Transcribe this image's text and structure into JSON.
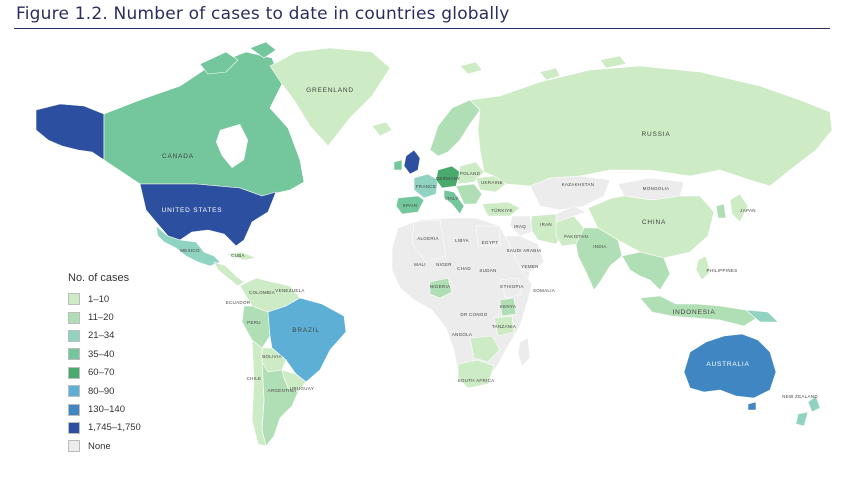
{
  "title": "Figure 1.2. Number of cases to date in countries globally",
  "legend": {
    "title": "No. of cases",
    "items": [
      {
        "label": "1–10",
        "color": "#cdebc5"
      },
      {
        "label": "11–20",
        "color": "#b1dfb5"
      },
      {
        "label": "21–34",
        "color": "#8fd3c0"
      },
      {
        "label": "35–40",
        "color": "#74c69c"
      },
      {
        "label": "60–70",
        "color": "#4aa96d"
      },
      {
        "label": "80–90",
        "color": "#5dafd6"
      },
      {
        "label": "130–140",
        "color": "#3f86c2"
      },
      {
        "label": "1,745–1,750",
        "color": "#2d4fa0"
      },
      {
        "label": "None",
        "color": "#ececec"
      }
    ]
  },
  "countries": {
    "greenland": "GREENLAND",
    "canada": "CANADA",
    "united_states": "UNITED STATES",
    "mexico": "MEXICO",
    "cuba": "CUBA",
    "brazil": "BRAZIL",
    "bolivia": "BOLIVIA",
    "chile": "CHILE",
    "argentina": "ARGENTINA",
    "colombia": "COLOMBIA",
    "ecuador": "ECUADOR",
    "venezuela": "VENEZUELA",
    "peru": "PERU",
    "uruguay": "URUGUAY",
    "russia": "RUSSIA",
    "china": "CHINA",
    "india": "INDIA",
    "kazakhstan": "KAZAKHSTAN",
    "mongolia": "MONGOLIA",
    "iran": "IRAN",
    "iraq": "IRAQ",
    "pakistan": "PAKISTAN",
    "saudi_arabia": "SAUDI ARABIA",
    "turkiye": "TÜRKIYE",
    "france": "FRANCE",
    "spain": "SPAIN",
    "poland": "POLAND",
    "ukraine": "UKRAINE",
    "germany": "GERMANY",
    "italy": "ITALY",
    "algeria": "ALGERIA",
    "libya": "LIBYA",
    "egypt": "EGYPT",
    "mali": "MALI",
    "niger": "NIGER",
    "chad": "CHAD",
    "sudan": "SUDAN",
    "nigeria": "NIGERIA",
    "ethiopia": "ETHIOPIA",
    "somalia": "SOMALIA",
    "kenya": "KENYA",
    "dr_congo": "DR CONGO",
    "angola": "ANGOLA",
    "tanzania": "TANZANIA",
    "south_africa": "SOUTH AFRICA",
    "yemen": "YEMEN",
    "indonesia": "INDONESIA",
    "philippines": "PHILIPPINES",
    "japan": "JAPAN",
    "australia": "AUSTRALIA",
    "new_zealand": "NEW ZEALAND"
  }
}
